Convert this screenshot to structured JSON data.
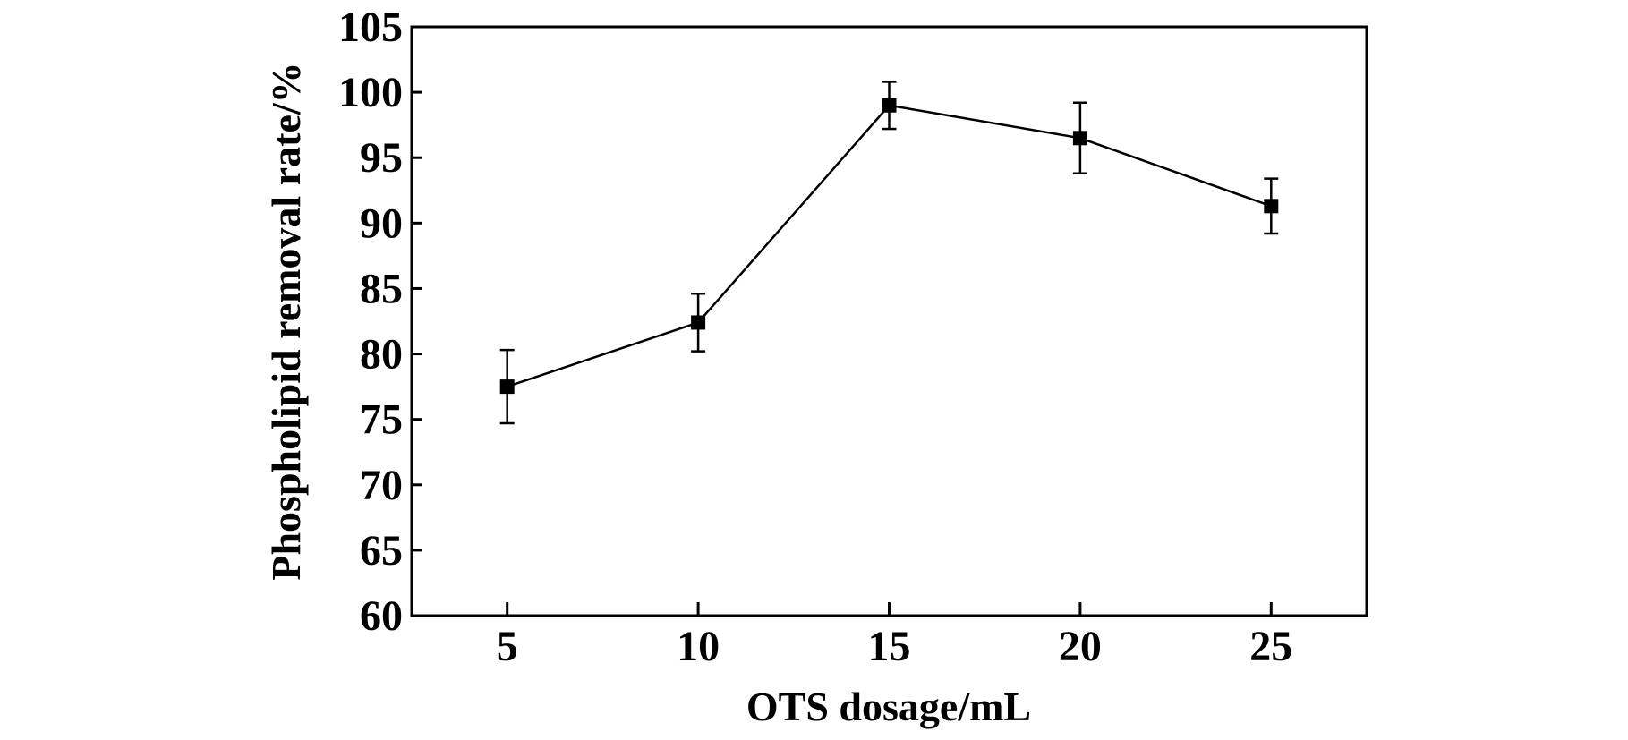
{
  "chart_data": {
    "type": "line",
    "title": "",
    "xlabel": "OTS dosage/mL",
    "ylabel": "Phospholipid removal rate/%",
    "x": [
      5,
      10,
      15,
      20,
      25
    ],
    "series": [
      {
        "name": "Phospholipid removal rate",
        "values": [
          77.5,
          82.4,
          99.0,
          96.5,
          91.3
        ],
        "error": [
          2.8,
          2.2,
          1.8,
          2.7,
          2.1
        ],
        "marker": "square",
        "color": "#000000"
      }
    ],
    "xlim": [
      2.5,
      27.5
    ],
    "ylim": [
      60,
      105
    ],
    "xticks": [
      "5",
      "10",
      "15",
      "20",
      "25"
    ],
    "yticks": [
      "60",
      "65",
      "70",
      "75",
      "80",
      "85",
      "90",
      "95",
      "100",
      "105"
    ],
    "grid": false,
    "legend": "none"
  }
}
